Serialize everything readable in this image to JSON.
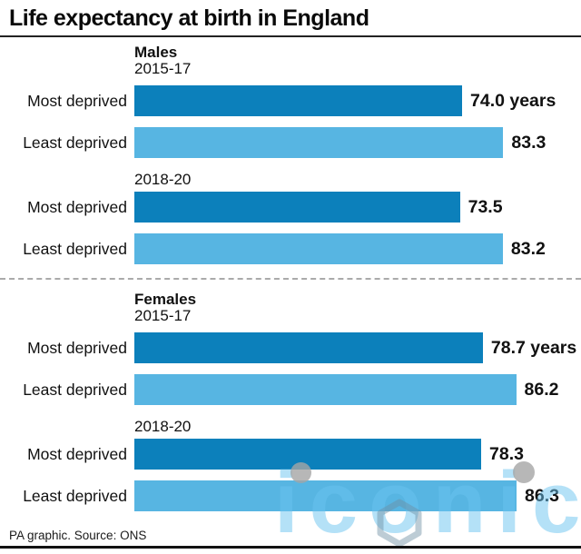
{
  "title": "Life expectancy at birth in England",
  "footer": {
    "credit": "PA graphic. Source: ONS"
  },
  "watermark": {
    "text": "iconic"
  },
  "colors": {
    "dark_bar": "#0c80bb",
    "light_bar": "#57b5e2",
    "title_text": "#0a0a0a",
    "divider": "#aaaaaa"
  },
  "chart_data": {
    "type": "bar",
    "orientation": "horizontal",
    "title": "Life expectancy at birth in England",
    "unit": "years",
    "value_range": [
      0,
      86.3
    ],
    "max_value": 86.3,
    "axis_visible": false,
    "grid": false,
    "sections": [
      {
        "label": "Males",
        "groups": [
          {
            "period": "2015-17",
            "rows": [
              {
                "label": "Most deprived",
                "value": 74.0,
                "display": "74.0 years",
                "shade": "dark"
              },
              {
                "label": "Least deprived",
                "value": 83.3,
                "display": "83.3",
                "shade": "light"
              }
            ]
          },
          {
            "period": "2018-20",
            "rows": [
              {
                "label": "Most deprived",
                "value": 73.5,
                "display": "73.5",
                "shade": "dark"
              },
              {
                "label": "Least deprived",
                "value": 83.2,
                "display": "83.2",
                "shade": "light"
              }
            ]
          }
        ]
      },
      {
        "label": "Females",
        "groups": [
          {
            "period": "2015-17",
            "rows": [
              {
                "label": "Most deprived",
                "value": 78.7,
                "display": "78.7 years",
                "shade": "dark"
              },
              {
                "label": "Least deprived",
                "value": 86.2,
                "display": "86.2",
                "shade": "light"
              }
            ]
          },
          {
            "period": "2018-20",
            "rows": [
              {
                "label": "Most deprived",
                "value": 78.3,
                "display": "78.3",
                "shade": "dark"
              },
              {
                "label": "Least deprived",
                "value": 86.3,
                "display": "86.3",
                "shade": "light"
              }
            ]
          }
        ]
      }
    ]
  }
}
